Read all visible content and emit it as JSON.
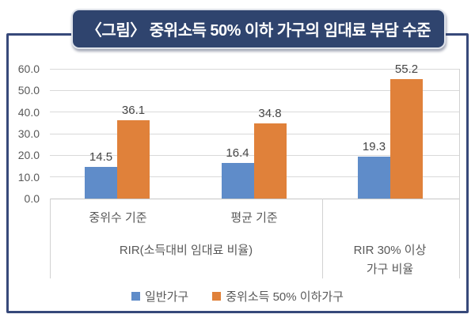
{
  "chart_data": {
    "type": "bar",
    "title": "〈그림〉 중위소득 50% 이하 가구의 임대료 부담 수준",
    "categories": [
      "중위수 기준",
      "평균 기준",
      ""
    ],
    "category_groups": [
      {
        "label_lines": [
          "RIR(소득대비 임대료 비율)"
        ],
        "start": 0,
        "end": 1
      },
      {
        "label_lines": [
          "RIR 30% 이상",
          "가구 비율"
        ],
        "start": 2,
        "end": 2
      }
    ],
    "series": [
      {
        "name": "일반가구",
        "color": "#5f8cc9",
        "values": [
          14.5,
          16.4,
          19.3
        ]
      },
      {
        "name": "중위소득 50% 이하가구",
        "color": "#e0813a",
        "values": [
          36.1,
          34.8,
          55.2
        ]
      }
    ],
    "value_labels": [
      "14.5",
      "36.1",
      "16.4",
      "34.8",
      "19.3",
      "55.2"
    ],
    "ylim": [
      0,
      60
    ],
    "ytick_labels": [
      "0.0",
      "10.0",
      "20.0",
      "30.0",
      "40.0",
      "50.0",
      "60.0"
    ],
    "grid": true,
    "legend_position": "bottom"
  },
  "colors": {
    "frame_border": "#37497a",
    "title_box_bg": "#2f446e",
    "title_text": "#ffffff",
    "grid_line": "#d9d9d9",
    "axis_line": "#c6c6c6",
    "text": "#595959",
    "value_label_text": "#454545",
    "series_blue": "#5f8cc9",
    "series_orange": "#e0813a"
  }
}
